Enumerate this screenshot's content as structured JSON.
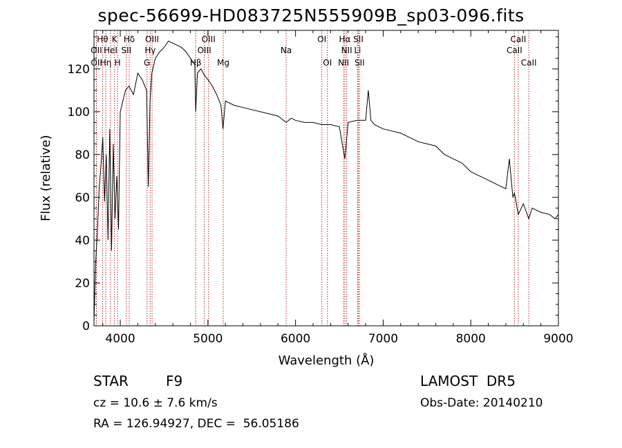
{
  "title": "spec-56699-HD083725N555909B_sp03-096.fits",
  "info": {
    "class_label": "STAR",
    "subclass": "F9",
    "survey": "LAMOST  DR5",
    "cz": "cz = 10.6 ± 7.6 km/s",
    "obs_date": "Obs-Date: 20140210",
    "coords": "RA = 126.94927, DEC =  56.05186"
  },
  "chart_data": {
    "type": "line",
    "xlabel": "Wavelength (Å)",
    "ylabel": "Flux (relative)",
    "xlim": [
      3700,
      9000
    ],
    "ylim": [
      0,
      138
    ],
    "x_ticks": [
      4000,
      5000,
      6000,
      7000,
      8000,
      9000
    ],
    "y_ticks": [
      0,
      20,
      40,
      60,
      80,
      100,
      120
    ],
    "line_color": "#000000",
    "marker_color": "#b22222",
    "series": [
      {
        "x": [
          3700,
          3720,
          3740,
          3760,
          3780,
          3800,
          3820,
          3840,
          3860,
          3880,
          3900,
          3920,
          3940,
          3960,
          3980,
          4000,
          4030,
          4060,
          4100,
          4150,
          4200,
          4250,
          4300,
          4320,
          4340,
          4360,
          4400,
          4450,
          4500,
          4550,
          4600,
          4650,
          4700,
          4750,
          4800,
          4850,
          4861,
          4880,
          4920,
          4960,
          5000,
          5050,
          5100,
          5150,
          5172,
          5200,
          5300,
          5400,
          5500,
          5600,
          5700,
          5800,
          5893,
          5950,
          6000,
          6100,
          6200,
          6300,
          6400,
          6500,
          6563,
          6600,
          6700,
          6800,
          6830,
          6860,
          6900,
          7000,
          7100,
          7200,
          7300,
          7400,
          7500,
          7600,
          7700,
          7800,
          7900,
          8000,
          8100,
          8200,
          8300,
          8400,
          8440,
          8480,
          8498,
          8542,
          8600,
          8662,
          8700,
          8800,
          8900,
          8960,
          9000
        ],
        "y": [
          2,
          30,
          45,
          65,
          75,
          88,
          58,
          80,
          40,
          92,
          35,
          85,
          50,
          70,
          45,
          100,
          105,
          110,
          112,
          108,
          118,
          115,
          110,
          65,
          105,
          118,
          125,
          128,
          130,
          133,
          132,
          131,
          130,
          128,
          125,
          122,
          100,
          118,
          120,
          117,
          115,
          112,
          108,
          103,
          92,
          105,
          103,
          102,
          101,
          100,
          99,
          98,
          95,
          97,
          96,
          95,
          95,
          94,
          94,
          93,
          78,
          95,
          96,
          96,
          110,
          96,
          94,
          92,
          91,
          90,
          88,
          86,
          85,
          84,
          80,
          78,
          76,
          72,
          70,
          68,
          66,
          64,
          78,
          60,
          62,
          52,
          57,
          50,
          55,
          53,
          52,
          50,
          52
        ]
      }
    ],
    "spectral_lines": [
      {
        "label": "Hθ",
        "wavelength": 3798,
        "row": 1
      },
      {
        "label": "OII",
        "wavelength": 3727,
        "row": 2
      },
      {
        "label": "OII",
        "wavelength": 3729,
        "row": 3
      },
      {
        "label": "K",
        "wavelength": 3934,
        "row": 1
      },
      {
        "label": "HeI",
        "wavelength": 3889,
        "row": 2
      },
      {
        "label": "Hη",
        "wavelength": 3835,
        "row": 3
      },
      {
        "label": "Hδ",
        "wavelength": 4102,
        "row": 1
      },
      {
        "label": "SII",
        "wavelength": 4069,
        "row": 2
      },
      {
        "label": "H",
        "wavelength": 3969,
        "row": 3
      },
      {
        "label": "OIII",
        "wavelength": 4363,
        "row": 1
      },
      {
        "label": "Hγ",
        "wavelength": 4341,
        "row": 2
      },
      {
        "label": "G",
        "wavelength": 4305,
        "row": 3
      },
      {
        "label": "OIII",
        "wavelength": 5007,
        "row": 1
      },
      {
        "label": "OIII",
        "wavelength": 4959,
        "row": 2
      },
      {
        "label": "Hβ",
        "wavelength": 4861,
        "row": 3
      },
      {
        "label": "Mg",
        "wavelength": 5175,
        "row": 3
      },
      {
        "label": "Na",
        "wavelength": 5893,
        "row": 2
      },
      {
        "label": "OI",
        "wavelength": 6300,
        "row": 1
      },
      {
        "label": "OI",
        "wavelength": 6364,
        "row": 3
      },
      {
        "label": "Hα",
        "wavelength": 6563,
        "row": 1
      },
      {
        "label": "NII",
        "wavelength": 6584,
        "row": 2
      },
      {
        "label": "NII",
        "wavelength": 6548,
        "row": 3
      },
      {
        "label": "SII",
        "wavelength": 6717,
        "row": 1
      },
      {
        "label": "Li",
        "wavelength": 6708,
        "row": 2
      },
      {
        "label": "SII",
        "wavelength": 6731,
        "row": 3
      },
      {
        "label": "CaII",
        "wavelength": 8542,
        "row": 1
      },
      {
        "label": "CaII",
        "wavelength": 8498,
        "row": 2
      },
      {
        "label": "CaII",
        "wavelength": 8662,
        "row": 3
      }
    ]
  }
}
